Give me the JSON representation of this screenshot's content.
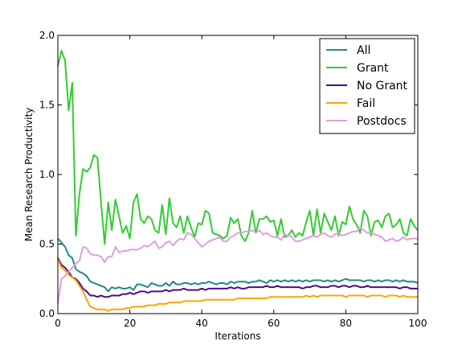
{
  "chart_data": {
    "type": "line",
    "xlabel": "Iterations",
    "ylabel": "Mean Research Productivity",
    "xlim": [
      0,
      100
    ],
    "ylim": [
      0.0,
      2.0
    ],
    "xticks": [
      "0",
      "20",
      "40",
      "60",
      "80",
      "100"
    ],
    "yticks": [
      "0.0",
      "0.5",
      "1.0",
      "1.5",
      "2.0"
    ],
    "legend_position": "top-right",
    "grid": false,
    "series": [
      {
        "name": "All",
        "color": "#1f8a8a",
        "values": [
          0.54,
          0.51,
          0.48,
          0.42,
          0.4,
          0.32,
          0.3,
          0.29,
          0.27,
          0.23,
          0.22,
          0.21,
          0.2,
          0.19,
          0.16,
          0.19,
          0.18,
          0.19,
          0.18,
          0.18,
          0.19,
          0.17,
          0.21,
          0.21,
          0.2,
          0.19,
          0.22,
          0.21,
          0.2,
          0.2,
          0.22,
          0.2,
          0.23,
          0.21,
          0.21,
          0.22,
          0.22,
          0.21,
          0.22,
          0.21,
          0.22,
          0.22,
          0.23,
          0.22,
          0.21,
          0.22,
          0.22,
          0.21,
          0.23,
          0.22,
          0.23,
          0.23,
          0.23,
          0.22,
          0.23,
          0.23,
          0.24,
          0.23,
          0.22,
          0.24,
          0.23,
          0.24,
          0.23,
          0.24,
          0.23,
          0.24,
          0.23,
          0.24,
          0.23,
          0.24,
          0.23,
          0.24,
          0.24,
          0.24,
          0.23,
          0.24,
          0.23,
          0.24,
          0.23,
          0.24,
          0.25,
          0.24,
          0.24,
          0.24,
          0.24,
          0.23,
          0.24,
          0.24,
          0.23,
          0.24,
          0.23,
          0.24,
          0.24,
          0.23,
          0.24,
          0.23,
          0.24,
          0.23,
          0.23,
          0.23,
          0.22
        ]
      },
      {
        "name": "Grant",
        "color": "#33cc33",
        "values": [
          1.78,
          1.89,
          1.82,
          1.46,
          1.66,
          0.56,
          0.86,
          1.04,
          1.02,
          1.05,
          1.14,
          1.12,
          0.8,
          0.5,
          0.8,
          0.6,
          0.82,
          0.7,
          0.58,
          0.63,
          0.54,
          0.8,
          0.86,
          0.68,
          0.65,
          0.7,
          0.68,
          0.6,
          0.58,
          0.78,
          0.57,
          0.83,
          0.65,
          0.62,
          0.7,
          0.58,
          0.7,
          0.62,
          0.55,
          0.65,
          0.64,
          0.74,
          0.72,
          0.58,
          0.57,
          0.56,
          0.54,
          0.56,
          0.69,
          0.65,
          0.68,
          0.56,
          0.52,
          0.58,
          0.74,
          0.58,
          0.68,
          0.68,
          0.7,
          0.66,
          0.67,
          0.56,
          0.68,
          0.55,
          0.56,
          0.6,
          0.55,
          0.58,
          0.56,
          0.66,
          0.74,
          0.56,
          0.75,
          0.58,
          0.72,
          0.66,
          0.6,
          0.7,
          0.56,
          0.66,
          0.64,
          0.77,
          0.68,
          0.64,
          0.58,
          0.74,
          0.7,
          0.56,
          0.66,
          0.67,
          0.62,
          0.7,
          0.72,
          0.62,
          0.64,
          0.68,
          0.58,
          0.56,
          0.68,
          0.63,
          0.6
        ]
      },
      {
        "name": "No Grant",
        "color": "#4b0d8c",
        "values": [
          0.4,
          0.35,
          0.33,
          0.3,
          0.26,
          0.25,
          0.22,
          0.18,
          0.16,
          0.13,
          0.13,
          0.12,
          0.13,
          0.12,
          0.12,
          0.13,
          0.13,
          0.13,
          0.14,
          0.14,
          0.15,
          0.14,
          0.15,
          0.16,
          0.16,
          0.15,
          0.16,
          0.16,
          0.16,
          0.16,
          0.17,
          0.16,
          0.17,
          0.17,
          0.17,
          0.18,
          0.17,
          0.17,
          0.17,
          0.17,
          0.18,
          0.17,
          0.18,
          0.18,
          0.18,
          0.18,
          0.18,
          0.18,
          0.19,
          0.18,
          0.19,
          0.18,
          0.18,
          0.19,
          0.19,
          0.19,
          0.19,
          0.19,
          0.2,
          0.19,
          0.19,
          0.2,
          0.19,
          0.19,
          0.19,
          0.19,
          0.19,
          0.19,
          0.18,
          0.19,
          0.19,
          0.2,
          0.2,
          0.19,
          0.19,
          0.19,
          0.2,
          0.2,
          0.19,
          0.2,
          0.2,
          0.19,
          0.2,
          0.2,
          0.19,
          0.19,
          0.2,
          0.19,
          0.19,
          0.19,
          0.19,
          0.19,
          0.19,
          0.19,
          0.19,
          0.18,
          0.19,
          0.19,
          0.18,
          0.18,
          0.18
        ]
      },
      {
        "name": "Fail",
        "color": "#ffa500",
        "values": [
          0.39,
          0.33,
          0.31,
          0.28,
          0.26,
          0.24,
          0.2,
          0.16,
          0.1,
          0.05,
          0.04,
          0.03,
          0.03,
          0.03,
          0.02,
          0.03,
          0.03,
          0.03,
          0.03,
          0.04,
          0.04,
          0.05,
          0.05,
          0.05,
          0.05,
          0.06,
          0.06,
          0.06,
          0.07,
          0.07,
          0.07,
          0.08,
          0.08,
          0.08,
          0.08,
          0.09,
          0.09,
          0.09,
          0.09,
          0.09,
          0.09,
          0.1,
          0.1,
          0.1,
          0.1,
          0.1,
          0.1,
          0.1,
          0.1,
          0.1,
          0.11,
          0.11,
          0.11,
          0.11,
          0.11,
          0.11,
          0.11,
          0.11,
          0.11,
          0.12,
          0.12,
          0.12,
          0.12,
          0.12,
          0.12,
          0.12,
          0.12,
          0.12,
          0.12,
          0.13,
          0.12,
          0.13,
          0.12,
          0.13,
          0.13,
          0.13,
          0.13,
          0.13,
          0.13,
          0.13,
          0.12,
          0.13,
          0.13,
          0.13,
          0.13,
          0.13,
          0.12,
          0.13,
          0.13,
          0.13,
          0.13,
          0.12,
          0.13,
          0.13,
          0.13,
          0.12,
          0.13,
          0.12,
          0.12,
          0.12,
          0.12
        ]
      },
      {
        "name": "Postdocs",
        "color": "#dda0dd",
        "values": [
          0.07,
          0.25,
          0.27,
          0.3,
          0.33,
          0.36,
          0.38,
          0.48,
          0.47,
          0.43,
          0.42,
          0.42,
          0.41,
          0.37,
          0.41,
          0.41,
          0.48,
          0.44,
          0.45,
          0.45,
          0.46,
          0.46,
          0.46,
          0.47,
          0.49,
          0.48,
          0.5,
          0.52,
          0.47,
          0.48,
          0.51,
          0.52,
          0.49,
          0.52,
          0.54,
          0.53,
          0.58,
          0.57,
          0.54,
          0.51,
          0.48,
          0.5,
          0.52,
          0.53,
          0.54,
          0.55,
          0.52,
          0.52,
          0.55,
          0.56,
          0.58,
          0.58,
          0.59,
          0.59,
          0.6,
          0.58,
          0.6,
          0.57,
          0.58,
          0.56,
          0.55,
          0.55,
          0.53,
          0.57,
          0.56,
          0.55,
          0.52,
          0.52,
          0.53,
          0.54,
          0.55,
          0.56,
          0.55,
          0.57,
          0.58,
          0.56,
          0.55,
          0.57,
          0.58,
          0.56,
          0.57,
          0.58,
          0.59,
          0.59,
          0.62,
          0.6,
          0.58,
          0.58,
          0.57,
          0.56,
          0.55,
          0.52,
          0.53,
          0.54,
          0.52,
          0.53,
          0.55,
          0.53,
          0.54,
          0.54,
          0.54
        ]
      }
    ]
  }
}
